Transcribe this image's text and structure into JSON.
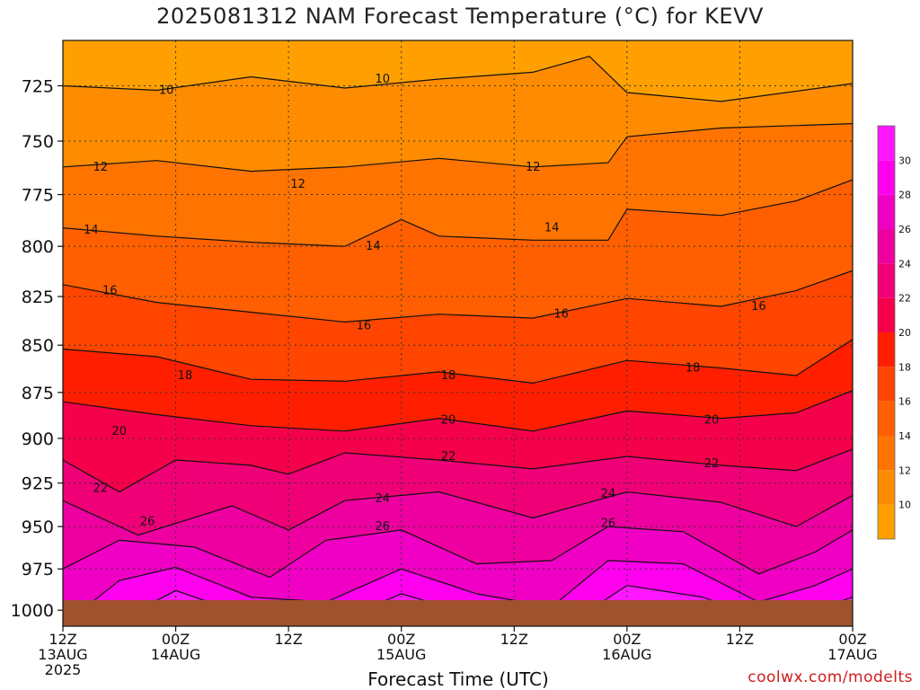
{
  "chart_data": {
    "type": "contour",
    "title": "2025081312 NAM Forecast Temperature (°C) for KEVV",
    "xlabel": "Forecast Time (UTC)",
    "ylabel": "",
    "y_axis": {
      "reversed": true,
      "ticks": [
        725,
        750,
        775,
        800,
        825,
        850,
        875,
        900,
        925,
        950,
        975,
        1000
      ]
    },
    "x_axis": {
      "ticks": [
        {
          "hours": 0,
          "label": "12Z",
          "date": "13AUG",
          "year": "2025"
        },
        {
          "hours": 12,
          "label": "00Z",
          "date": "14AUG",
          "year": ""
        },
        {
          "hours": 24,
          "label": "12Z",
          "date": "",
          "year": ""
        },
        {
          "hours": 36,
          "label": "00Z",
          "date": "15AUG",
          "year": ""
        },
        {
          "hours": 48,
          "label": "12Z",
          "date": "",
          "year": ""
        },
        {
          "hours": 60,
          "label": "00Z",
          "date": "16AUG",
          "year": ""
        },
        {
          "hours": 72,
          "label": "12Z",
          "date": "",
          "year": ""
        },
        {
          "hours": 84,
          "label": "00Z",
          "date": "17AUG",
          "year": ""
        }
      ]
    },
    "colorbar": {
      "levels": [
        10,
        12,
        14,
        16,
        18,
        20,
        22,
        24,
        26,
        28,
        30
      ],
      "colors": [
        "#ffa000",
        "#ff8c00",
        "#ff7400",
        "#ff5f00",
        "#ff4500",
        "#ff1f00",
        "#f5004a",
        "#ef0077",
        "#ee00a0",
        "#f000c4",
        "#ff00ee",
        "#ff18ff"
      ]
    },
    "contour_labels": [
      {
        "value": "10",
        "hours": 11,
        "p": 727
      },
      {
        "value": "10",
        "hours": 34,
        "p": 722
      },
      {
        "value": "12",
        "hours": 4,
        "p": 762
      },
      {
        "value": "12",
        "hours": 25,
        "p": 770
      },
      {
        "value": "12",
        "hours": 50,
        "p": 762
      },
      {
        "value": "14",
        "hours": 3,
        "p": 792
      },
      {
        "value": "14",
        "hours": 33,
        "p": 800
      },
      {
        "value": "14",
        "hours": 52,
        "p": 791
      },
      {
        "value": "16",
        "hours": 5,
        "p": 822
      },
      {
        "value": "16",
        "hours": 32,
        "p": 840
      },
      {
        "value": "16",
        "hours": 53,
        "p": 834
      },
      {
        "value": "16",
        "hours": 74,
        "p": 830
      },
      {
        "value": "18",
        "hours": 13,
        "p": 866
      },
      {
        "value": "18",
        "hours": 41,
        "p": 866
      },
      {
        "value": "18",
        "hours": 67,
        "p": 862
      },
      {
        "value": "20",
        "hours": 6,
        "p": 896
      },
      {
        "value": "20",
        "hours": 41,
        "p": 890
      },
      {
        "value": "20",
        "hours": 69,
        "p": 890
      },
      {
        "value": "22",
        "hours": 4,
        "p": 928
      },
      {
        "value": "22",
        "hours": 41,
        "p": 910
      },
      {
        "value": "22",
        "hours": 69,
        "p": 914
      },
      {
        "value": "24",
        "hours": 34,
        "p": 934
      },
      {
        "value": "24",
        "hours": 58,
        "p": 931
      },
      {
        "value": "26",
        "hours": 9,
        "p": 947
      },
      {
        "value": "26",
        "hours": 34,
        "p": 950
      },
      {
        "value": "26",
        "hours": 58,
        "p": 948
      }
    ]
  },
  "credit": "coolwx.com/modelts"
}
